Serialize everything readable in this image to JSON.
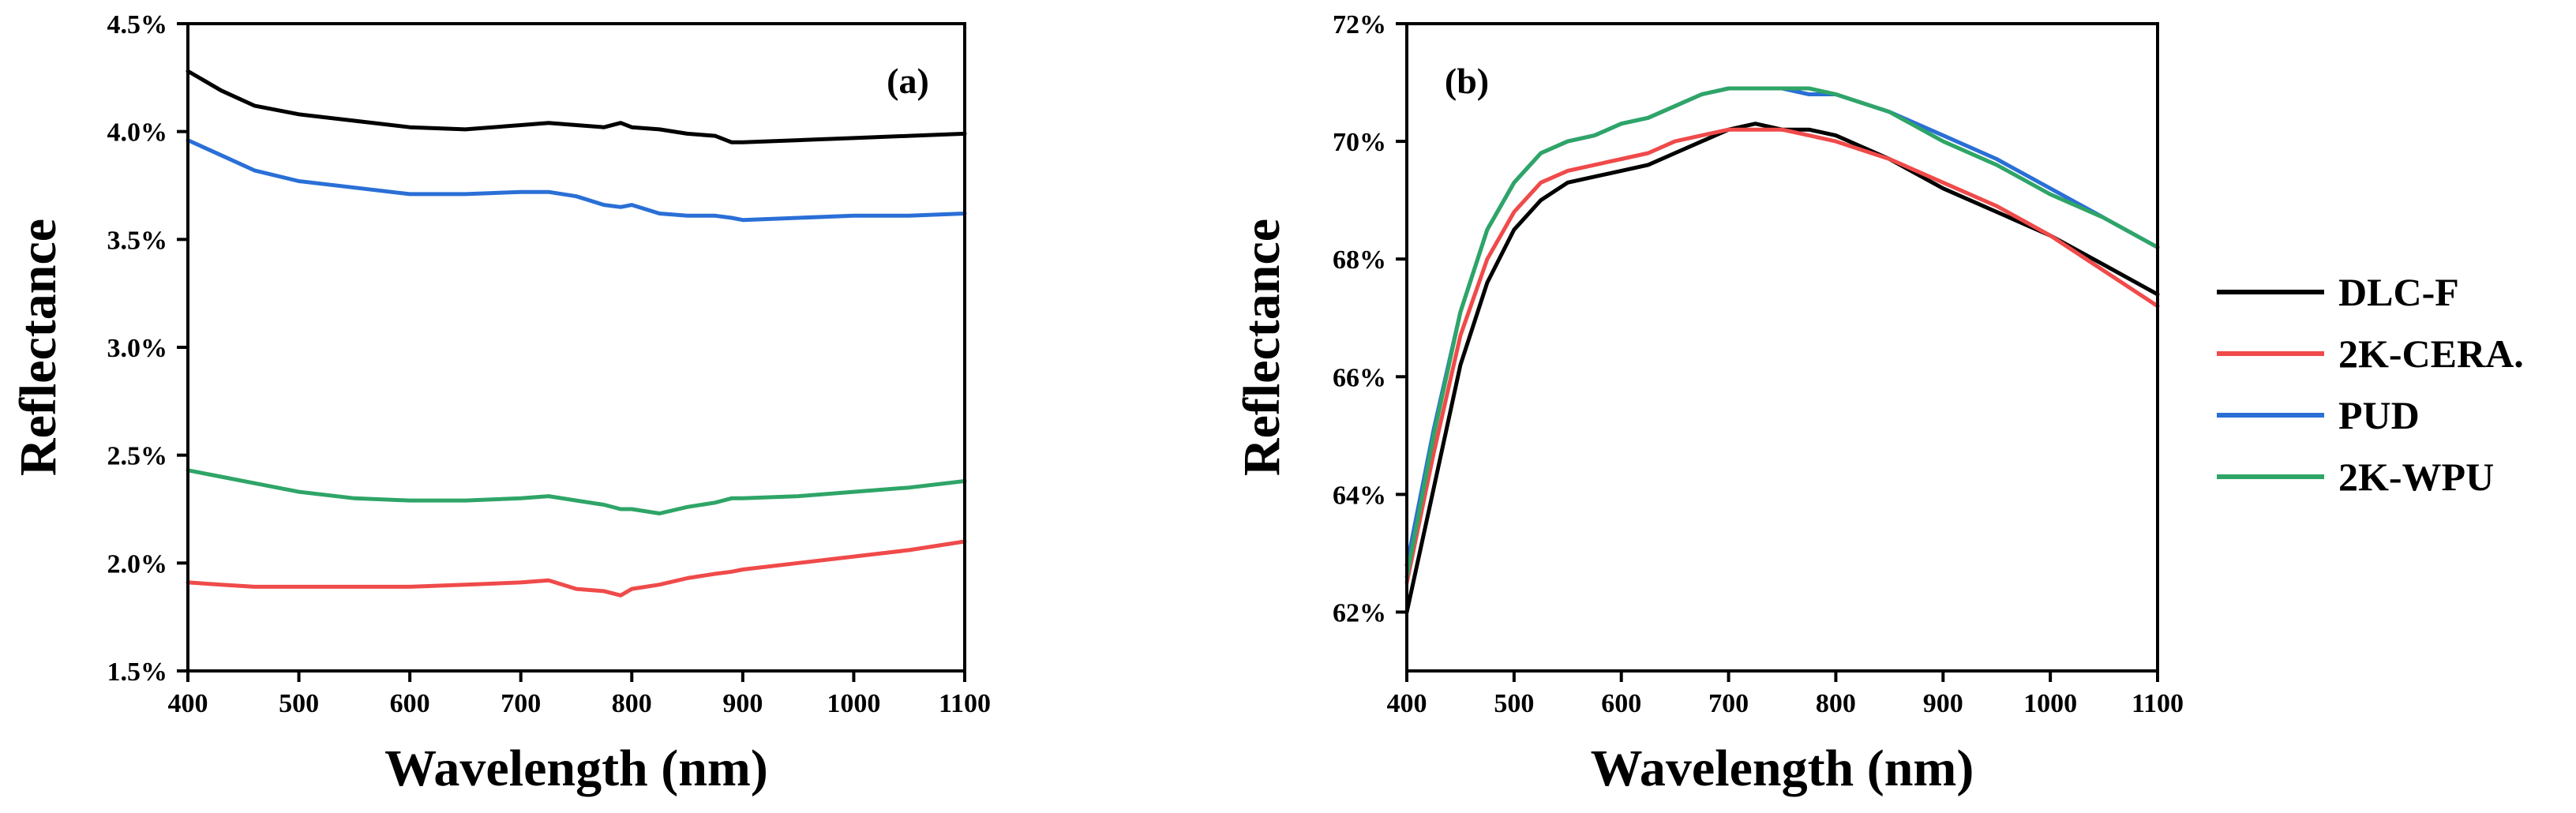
{
  "chart_data": [
    {
      "panel": "a",
      "type": "line",
      "title": "",
      "panel_label": "(a)",
      "xlabel": "Wavelength (nm)",
      "ylabel": "Reflectance",
      "xlim": [
        400,
        1100
      ],
      "ylim": [
        1.5,
        4.5
      ],
      "grid": false,
      "x_ticks": [
        400,
        500,
        600,
        700,
        800,
        900,
        1000,
        1100
      ],
      "x_tick_labels": [
        "400",
        "500",
        "600",
        "700",
        "800",
        "900",
        "1000",
        "1100"
      ],
      "y_ticks": [
        1.5,
        2.0,
        2.5,
        3.0,
        3.5,
        4.0,
        4.5
      ],
      "y_tick_labels": [
        "1.5%",
        "2.0%",
        "2.5%",
        "3.0%",
        "3.5%",
        "4.0%",
        "4.5%"
      ],
      "x": [
        400,
        430,
        460,
        500,
        550,
        600,
        650,
        700,
        725,
        750,
        775,
        790,
        800,
        825,
        850,
        875,
        890,
        900,
        950,
        1000,
        1050,
        1100
      ],
      "series": [
        {
          "name": "DLC-F",
          "color": "#000000",
          "values": [
            4.28,
            4.19,
            4.12,
            4.08,
            4.05,
            4.02,
            4.01,
            4.03,
            4.04,
            4.03,
            4.02,
            4.04,
            4.02,
            4.01,
            3.99,
            3.98,
            3.95,
            3.95,
            3.96,
            3.97,
            3.98,
            3.99
          ]
        },
        {
          "name": "2K-CERA.",
          "color": "#f04a4a",
          "values": [
            1.91,
            1.9,
            1.89,
            1.89,
            1.89,
            1.89,
            1.9,
            1.91,
            1.92,
            1.88,
            1.87,
            1.85,
            1.88,
            1.9,
            1.93,
            1.95,
            1.96,
            1.97,
            2.0,
            2.03,
            2.06,
            2.1
          ]
        },
        {
          "name": "PUD",
          "color": "#2a6fd6",
          "values": [
            3.96,
            3.89,
            3.82,
            3.77,
            3.74,
            3.71,
            3.71,
            3.72,
            3.72,
            3.7,
            3.66,
            3.65,
            3.66,
            3.62,
            3.61,
            3.61,
            3.6,
            3.59,
            3.6,
            3.61,
            3.61,
            3.62
          ]
        },
        {
          "name": "2K-WPU",
          "color": "#2ea567",
          "values": [
            2.43,
            2.4,
            2.37,
            2.33,
            2.3,
            2.29,
            2.29,
            2.3,
            2.31,
            2.29,
            2.27,
            2.25,
            2.25,
            2.23,
            2.26,
            2.28,
            2.3,
            2.3,
            2.31,
            2.33,
            2.35,
            2.38
          ]
        }
      ]
    },
    {
      "panel": "b",
      "type": "line",
      "title": "",
      "panel_label": "(b)",
      "xlabel": "Wavelength (nm)",
      "ylabel": "Reflectance",
      "xlim": [
        400,
        1100
      ],
      "ylim": [
        61.0,
        72.0
      ],
      "grid": false,
      "legend": "right",
      "x_ticks": [
        400,
        500,
        600,
        700,
        800,
        900,
        1000,
        1100
      ],
      "x_tick_labels": [
        "400",
        "500",
        "600",
        "700",
        "800",
        "900",
        "1000",
        "1100"
      ],
      "y_ticks": [
        62,
        64,
        66,
        68,
        70,
        72
      ],
      "y_tick_labels": [
        "62%",
        "64%",
        "66%",
        "68%",
        "70%",
        "72%"
      ],
      "x": [
        400,
        425,
        450,
        475,
        500,
        525,
        550,
        575,
        600,
        625,
        650,
        675,
        700,
        725,
        750,
        775,
        800,
        850,
        900,
        950,
        1000,
        1050,
        1100
      ],
      "series": [
        {
          "name": "DLC-F",
          "color": "#000000",
          "values": [
            62.0,
            64.1,
            66.2,
            67.6,
            68.5,
            69.0,
            69.3,
            69.4,
            69.5,
            69.6,
            69.8,
            70.0,
            70.2,
            70.3,
            70.2,
            70.2,
            70.1,
            69.7,
            69.2,
            68.8,
            68.4,
            67.9,
            67.4
          ]
        },
        {
          "name": "2K-CERA.",
          "color": "#f04a4a",
          "values": [
            62.5,
            64.7,
            66.7,
            68.0,
            68.8,
            69.3,
            69.5,
            69.6,
            69.7,
            69.8,
            70.0,
            70.1,
            70.2,
            70.2,
            70.2,
            70.1,
            70.0,
            69.7,
            69.3,
            68.9,
            68.4,
            67.8,
            67.2
          ]
        },
        {
          "name": "PUD",
          "color": "#2a6fd6",
          "values": [
            62.8,
            65.1,
            67.1,
            68.5,
            69.3,
            69.8,
            70.0,
            70.1,
            70.3,
            70.4,
            70.6,
            70.8,
            70.9,
            70.9,
            70.9,
            70.8,
            70.8,
            70.5,
            70.1,
            69.7,
            69.2,
            68.7,
            68.2
          ]
        },
        {
          "name": "2K-WPU",
          "color": "#2ea567",
          "values": [
            62.6,
            65.0,
            67.1,
            68.5,
            69.3,
            69.8,
            70.0,
            70.1,
            70.3,
            70.4,
            70.6,
            70.8,
            70.9,
            70.9,
            70.9,
            70.9,
            70.8,
            70.5,
            70.0,
            69.6,
            69.1,
            68.7,
            68.2
          ]
        }
      ]
    }
  ]
}
